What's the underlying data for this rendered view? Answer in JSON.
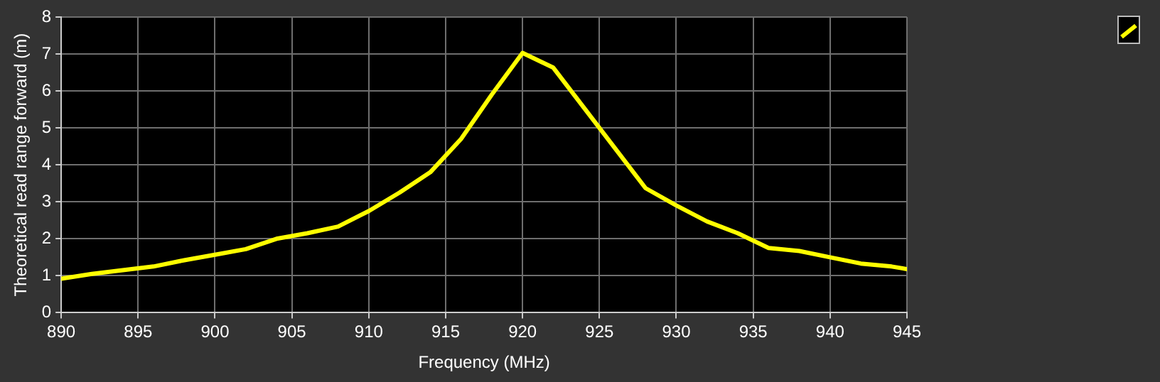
{
  "chart_data": {
    "type": "line",
    "xlabel": "Frequency (MHz)",
    "ylabel": "Theoretical read range forward (m)",
    "x": [
      890,
      892,
      894,
      896,
      898,
      900,
      902,
      904,
      906,
      908,
      910,
      912,
      914,
      916,
      918,
      920,
      922,
      928,
      930,
      932,
      934,
      936,
      938,
      940,
      942,
      944,
      945
    ],
    "series": [
      {
        "color": "#ffff00",
        "values": [
          0.92,
          1.05,
          1.15,
          1.25,
          1.42,
          1.57,
          1.72,
          2.0,
          2.15,
          2.33,
          2.75,
          3.25,
          3.8,
          4.7,
          5.9,
          7.03,
          6.63,
          3.37,
          2.9,
          2.47,
          2.15,
          1.75,
          1.67,
          1.5,
          1.33,
          1.25,
          1.18
        ]
      }
    ],
    "xlim": [
      890,
      945
    ],
    "xticks": [
      890,
      895,
      900,
      905,
      910,
      915,
      920,
      925,
      930,
      935,
      940,
      945
    ],
    "ylim": [
      0,
      8
    ],
    "yticks": [
      0,
      1,
      2,
      3,
      4,
      5,
      6,
      7,
      8
    ],
    "grid": true,
    "marker": "none",
    "line_style": "solid"
  }
}
